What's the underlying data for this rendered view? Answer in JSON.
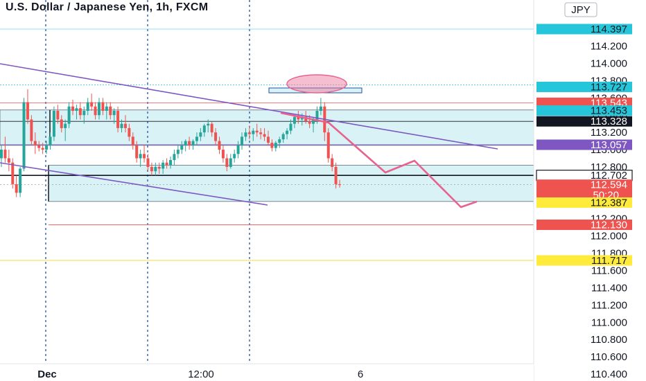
{
  "header": {
    "title": "U.S. Dollar / Japanese Yen, 1h, FXCM",
    "currency_button": "JPY"
  },
  "colors": {
    "up": "#26a69a",
    "down": "#ef5350",
    "channel": "#7e57c2",
    "projection": "#e8628f",
    "zone_fill": "#d9f2f5",
    "grid_blue": "#1f4fa8",
    "tag_cyan": "#26c6da",
    "tag_red": "#ef5350",
    "tag_black": "#131722",
    "tag_purple": "#7e57c2",
    "tag_yellow": "#ffeb3b"
  },
  "chart_data": {
    "type": "candlestick",
    "title": "U.S. Dollar / Japanese Yen, 1h, FXCM",
    "ylim": [
      110.3,
      114.47
    ],
    "y_ticks": [
      "114.200",
      "114.000",
      "113.800",
      "113.600",
      "113.400",
      "113.200",
      "113.000",
      "112.800",
      "112.600",
      "112.400",
      "112.200",
      "112.000",
      "111.800",
      "111.600",
      "111.400",
      "111.200",
      "111.000",
      "110.800",
      "110.600",
      "110.400"
    ],
    "x_tick_labels": [
      "Dec",
      "12:00",
      "6"
    ],
    "price_tags": [
      {
        "label": "114.397",
        "price": 114.397,
        "style": "cyan"
      },
      {
        "label": "113.727",
        "price": 113.727,
        "style": "cyan"
      },
      {
        "label": "113.543",
        "price": 113.543,
        "style": "red"
      },
      {
        "label": "113.453",
        "price": 113.453,
        "style": "cyan"
      },
      {
        "label": "113.328",
        "price": 113.328,
        "style": "black"
      },
      {
        "label": "113.057",
        "price": 113.057,
        "style": "purple"
      },
      {
        "label": "112.702",
        "price": 112.702,
        "style": "black-outline"
      },
      {
        "label": "112.594",
        "price": 112.594,
        "style": "red",
        "sublabel": "50:20"
      },
      {
        "label": "112.387",
        "price": 112.387,
        "style": "yellow"
      },
      {
        "label": "112.130",
        "price": 112.13,
        "style": "red"
      },
      {
        "label": "111.717",
        "price": 111.717,
        "style": "yellow"
      }
    ],
    "candles_ohlc": [
      [
        112.9,
        113.05,
        112.8,
        113.0
      ],
      [
        113.0,
        113.15,
        112.85,
        112.9
      ],
      [
        112.9,
        113.0,
        112.75,
        112.85
      ],
      [
        112.85,
        112.9,
        112.55,
        112.6
      ],
      [
        112.6,
        112.7,
        112.45,
        112.5
      ],
      [
        112.5,
        112.8,
        112.45,
        112.78
      ],
      [
        112.78,
        113.6,
        112.75,
        113.55
      ],
      [
        113.55,
        113.7,
        113.3,
        113.35
      ],
      [
        113.35,
        113.4,
        113.05,
        113.1
      ],
      [
        113.1,
        113.2,
        112.95,
        113.05
      ],
      [
        113.05,
        113.1,
        112.98,
        113.02
      ],
      [
        113.02,
        113.08,
        112.95,
        113.0
      ],
      [
        113.0,
        113.1,
        112.95,
        113.05
      ],
      [
        113.05,
        113.2,
        113.0,
        113.15
      ],
      [
        113.15,
        113.5,
        113.1,
        113.45
      ],
      [
        113.45,
        113.52,
        113.3,
        113.35
      ],
      [
        113.35,
        113.4,
        113.2,
        113.25
      ],
      [
        113.25,
        113.35,
        113.1,
        113.3
      ],
      [
        113.3,
        113.55,
        113.25,
        113.5
      ],
      [
        113.5,
        113.58,
        113.4,
        113.45
      ],
      [
        113.45,
        113.52,
        113.35,
        113.48
      ],
      [
        113.48,
        113.55,
        113.35,
        113.4
      ],
      [
        113.4,
        113.5,
        113.3,
        113.45
      ],
      [
        113.45,
        113.6,
        113.4,
        113.55
      ],
      [
        113.55,
        113.65,
        113.45,
        113.5
      ],
      [
        113.5,
        113.55,
        113.35,
        113.4
      ],
      [
        113.4,
        113.6,
        113.35,
        113.55
      ],
      [
        113.55,
        113.6,
        113.4,
        113.45
      ],
      [
        113.45,
        113.55,
        113.35,
        113.5
      ],
      [
        113.5,
        113.55,
        113.35,
        113.4
      ],
      [
        113.4,
        113.48,
        113.3,
        113.45
      ],
      [
        113.45,
        113.5,
        113.2,
        113.25
      ],
      [
        113.25,
        113.35,
        113.2,
        113.3
      ],
      [
        113.3,
        113.4,
        113.2,
        113.25
      ],
      [
        113.25,
        113.3,
        113.1,
        113.15
      ],
      [
        113.15,
        113.2,
        113.0,
        113.05
      ],
      [
        113.05,
        113.1,
        112.85,
        112.9
      ],
      [
        112.9,
        113.0,
        112.8,
        112.95
      ],
      [
        112.95,
        113.05,
        112.85,
        112.9
      ],
      [
        112.9,
        112.95,
        112.75,
        112.8
      ],
      [
        112.8,
        112.85,
        112.7,
        112.75
      ],
      [
        112.75,
        112.85,
        112.7,
        112.8
      ],
      [
        112.8,
        112.85,
        112.72,
        112.78
      ],
      [
        112.78,
        112.88,
        112.72,
        112.85
      ],
      [
        112.85,
        112.9,
        112.78,
        112.82
      ],
      [
        112.82,
        112.92,
        112.78,
        112.88
      ],
      [
        112.88,
        113.0,
        112.82,
        112.95
      ],
      [
        112.95,
        113.05,
        112.9,
        113.0
      ],
      [
        113.0,
        113.1,
        112.95,
        113.05
      ],
      [
        113.05,
        113.12,
        112.98,
        113.1
      ],
      [
        113.1,
        113.15,
        113.0,
        113.05
      ],
      [
        113.05,
        113.12,
        113.0,
        113.1
      ],
      [
        113.1,
        113.2,
        113.05,
        113.15
      ],
      [
        113.15,
        113.25,
        113.1,
        113.2
      ],
      [
        113.2,
        113.3,
        113.15,
        113.28
      ],
      [
        113.28,
        113.35,
        113.2,
        113.3
      ],
      [
        113.3,
        113.32,
        113.15,
        113.2
      ],
      [
        113.2,
        113.25,
        113.05,
        113.1
      ],
      [
        113.1,
        113.15,
        112.95,
        113.0
      ],
      [
        113.0,
        113.05,
        112.85,
        112.9
      ],
      [
        112.9,
        112.95,
        112.75,
        112.8
      ],
      [
        112.8,
        112.95,
        112.78,
        112.9
      ],
      [
        112.9,
        113.0,
        112.85,
        112.95
      ],
      [
        112.95,
        113.1,
        112.9,
        113.05
      ],
      [
        113.05,
        113.2,
        113.0,
        113.15
      ],
      [
        113.15,
        113.25,
        113.1,
        113.2
      ],
      [
        113.2,
        113.28,
        113.12,
        113.18
      ],
      [
        113.18,
        113.25,
        113.1,
        113.22
      ],
      [
        113.22,
        113.3,
        113.15,
        113.2
      ],
      [
        113.2,
        113.25,
        113.12,
        113.18
      ],
      [
        113.18,
        113.25,
        113.1,
        113.15
      ],
      [
        113.15,
        113.22,
        113.05,
        113.08
      ],
      [
        113.08,
        113.12,
        112.98,
        113.02
      ],
      [
        113.02,
        113.1,
        112.98,
        113.08
      ],
      [
        113.08,
        113.15,
        113.02,
        113.12
      ],
      [
        113.12,
        113.2,
        113.08,
        113.18
      ],
      [
        113.18,
        113.25,
        113.12,
        113.22
      ],
      [
        113.22,
        113.35,
        113.18,
        113.3
      ],
      [
        113.3,
        113.4,
        113.25,
        113.38
      ],
      [
        113.38,
        113.45,
        113.3,
        113.35
      ],
      [
        113.35,
        113.42,
        113.28,
        113.38
      ],
      [
        113.38,
        113.45,
        113.3,
        113.33
      ],
      [
        113.33,
        113.4,
        113.25,
        113.3
      ],
      [
        113.3,
        113.38,
        113.2,
        113.35
      ],
      [
        113.35,
        113.5,
        113.3,
        113.45
      ],
      [
        113.45,
        113.6,
        113.4,
        113.5
      ],
      [
        113.5,
        113.55,
        113.1,
        113.2
      ],
      [
        113.2,
        113.25,
        112.85,
        112.9
      ],
      [
        112.9,
        112.95,
        112.75,
        112.8
      ],
      [
        112.8,
        112.85,
        112.55,
        112.6
      ],
      [
        112.6,
        112.65,
        112.56,
        112.59
      ]
    ],
    "zones": [
      {
        "name": "upper_zone",
        "from": 113.05,
        "to": 113.46
      },
      {
        "name": "lower_zone",
        "from": 112.4,
        "to": 112.82
      }
    ],
    "horizontal_levels": [
      113.75,
      113.543,
      113.328,
      113.057,
      112.702,
      112.13,
      111.717
    ],
    "projection_path": [
      [
        113.2,
        "p1"
      ],
      [
        112.55,
        "p2"
      ],
      [
        112.72,
        "p3"
      ],
      [
        112.13,
        "p4"
      ],
      [
        112.18,
        "p5"
      ]
    ]
  }
}
